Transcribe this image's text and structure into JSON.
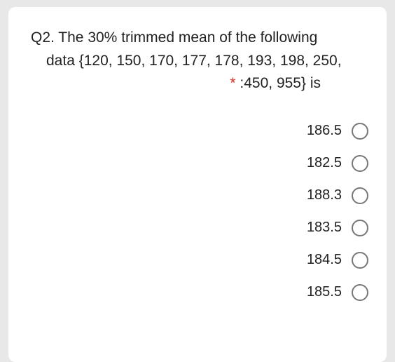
{
  "question": {
    "line1": "Q2. The 30% trimmed mean of the following",
    "line2": "data {120, 150, 170, 177, 178, 193, 198, 250,",
    "line3_prefix": "* ",
    "line3_suffix": ":450, 955} is",
    "required_marker": "*"
  },
  "options": [
    {
      "label": "186.5"
    },
    {
      "label": "182.5"
    },
    {
      "label": "188.3"
    },
    {
      "label": "183.5"
    },
    {
      "label": "184.5"
    },
    {
      "label": "185.5"
    }
  ],
  "colors": {
    "page_bg": "#e8e8e8",
    "card_bg": "#ffffff",
    "text": "#222222",
    "radio_border": "#777777",
    "required": "#d93025"
  }
}
